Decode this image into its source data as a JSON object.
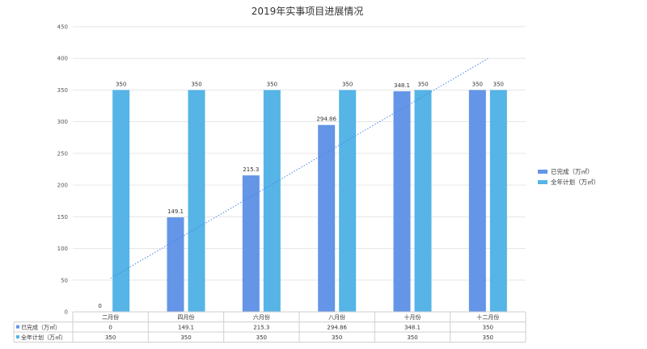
{
  "chart_data": {
    "type": "bar",
    "title": "2019年实事项目进展情况",
    "categories": [
      "二月份",
      "四月份",
      "六月份",
      "八月份",
      "十月份",
      "十二月份"
    ],
    "series": [
      {
        "name": "已完成（万㎡）",
        "values": [
          0,
          149.1,
          215.3,
          294.86,
          348.1,
          350
        ],
        "labels": [
          "0",
          "149.1",
          "215.3",
          "294.86",
          "348.1",
          "350"
        ],
        "color": "#6495e6"
      },
      {
        "name": "全年计划（万㎡）",
        "values": [
          350,
          350,
          350,
          350,
          350,
          350
        ],
        "labels": [
          "350",
          "350",
          "350",
          "350",
          "350",
          "350"
        ],
        "color": "#56b4e6"
      }
    ],
    "ylim": [
      0,
      450
    ],
    "yticks": [
      "0",
      "50",
      "100",
      "150",
      "200",
      "250",
      "300",
      "350",
      "400",
      "450"
    ],
    "grid": true,
    "legend": "right",
    "trendline": {
      "series": "已完成（万㎡）",
      "style": "dotted",
      "color": "#4a86e8"
    },
    "data_table": true
  }
}
